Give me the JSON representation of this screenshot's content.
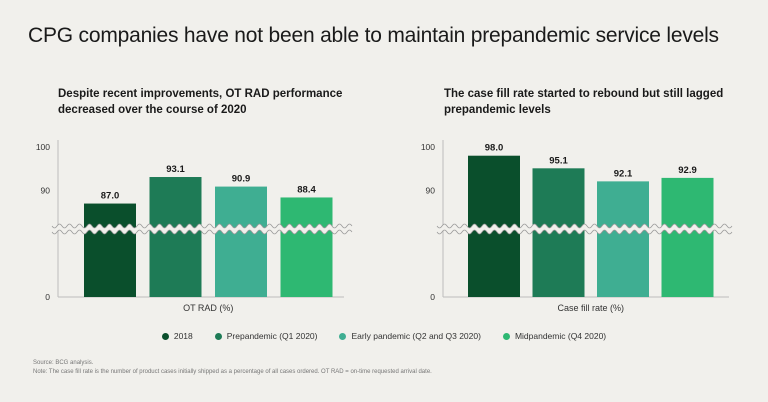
{
  "title": "CPG companies have not been able to maintain prepandemic service levels",
  "legend": [
    {
      "label": "2018",
      "color": "#0a4f2c"
    },
    {
      "label": "Prepandemic (Q1 2020)",
      "color": "#1e7b56"
    },
    {
      "label": "Early pandemic (Q2 and Q3 2020)",
      "color": "#3fae92"
    },
    {
      "label": "Midpandemic (Q4 2020)",
      "color": "#2eb872"
    }
  ],
  "source": "Source: BCG analysis.",
  "note": "Note: The case fill rate is the number of product cases initially shipped as a percentage of all cases ordered. OT RAD = on-time requested arrival date.",
  "chart_data": [
    {
      "type": "bar",
      "title": "Despite recent improvements, OT RAD performance decreased over the course of 2020",
      "xlabel": "OT RAD (%)",
      "ylabel": "",
      "categories": [
        "2018",
        "Prepandemic (Q1 2020)",
        "Early pandemic (Q2 and Q3 2020)",
        "Midpandemic (Q4 2020)"
      ],
      "values": [
        87.0,
        93.1,
        90.9,
        88.4
      ],
      "value_labels": [
        "87.0",
        "93.1",
        "90.9",
        "88.4"
      ],
      "colors": [
        "#0a4f2c",
        "#1e7b56",
        "#3fae92",
        "#2eb872"
      ],
      "yticks": [
        "100",
        "90",
        "0"
      ],
      "axis_break": true,
      "ylim_upper": [
        80,
        100
      ]
    },
    {
      "type": "bar",
      "title": "The case fill rate started to rebound but still lagged prepandemic levels",
      "xlabel": "Case fill rate (%)",
      "ylabel": "",
      "categories": [
        "2018",
        "Prepandemic (Q1 2020)",
        "Early pandemic (Q2 and Q3 2020)",
        "Midpandemic (Q4 2020)"
      ],
      "values": [
        98.0,
        95.1,
        92.1,
        92.9
      ],
      "value_labels": [
        "98.0",
        "95.1",
        "92.1",
        "92.9"
      ],
      "colors": [
        "#0a4f2c",
        "#1e7b56",
        "#3fae92",
        "#2eb872"
      ],
      "yticks": [
        "100",
        "90",
        "0"
      ],
      "axis_break": true,
      "ylim_upper": [
        80,
        100
      ]
    }
  ]
}
